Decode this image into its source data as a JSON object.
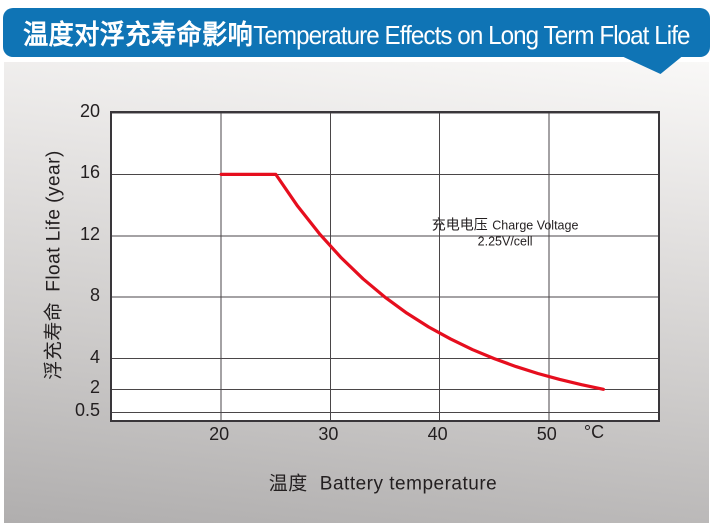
{
  "header": {
    "title_zh": "温度对浮充寿命影响",
    "title_en": "Temperature Effects on Long Term Float Life",
    "bg_color": "#0f74b5",
    "text_color": "#ffffff"
  },
  "colors": {
    "accent_blue": "#0f74b5",
    "curve_red": "#e60e1e",
    "grid_line": "#4a4648",
    "plot_border": "#39363a",
    "text": "#231f20",
    "card_gradient_top": "#f9f8f7",
    "card_gradient_bottom": "#b0aeae"
  },
  "chart_data": {
    "type": "line",
    "xlabel_zh": "温度",
    "xlabel_en": "Battery temperature",
    "ylabel_zh": "浮充寿命",
    "ylabel_en": "Float Life (year)",
    "x_unit": "°C",
    "xlim": [
      10,
      60
    ],
    "ylim": [
      0,
      20
    ],
    "x_ticks": [
      20,
      30,
      40,
      50
    ],
    "y_ticks": [
      0.5,
      2,
      4,
      8,
      12,
      16,
      20
    ],
    "grid": true,
    "legend": "none",
    "annotation": {
      "line1_zh": "充电电压",
      "line1_en": "Charge Voltage",
      "line2": "2.25V/cell"
    },
    "series": [
      {
        "name": "float-life-vs-temperature",
        "color": "#e60e1e",
        "points": [
          [
            20,
            16
          ],
          [
            25,
            16
          ],
          [
            27,
            13.93
          ],
          [
            29,
            12.13
          ],
          [
            31,
            10.56
          ],
          [
            33,
            9.19
          ],
          [
            35,
            8
          ],
          [
            37,
            6.96
          ],
          [
            39,
            6.06
          ],
          [
            41,
            5.28
          ],
          [
            43,
            4.59
          ],
          [
            45,
            4
          ],
          [
            47,
            3.48
          ],
          [
            49,
            3.03
          ],
          [
            51,
            2.64
          ],
          [
            53,
            2.3
          ],
          [
            55,
            2
          ]
        ]
      }
    ]
  }
}
